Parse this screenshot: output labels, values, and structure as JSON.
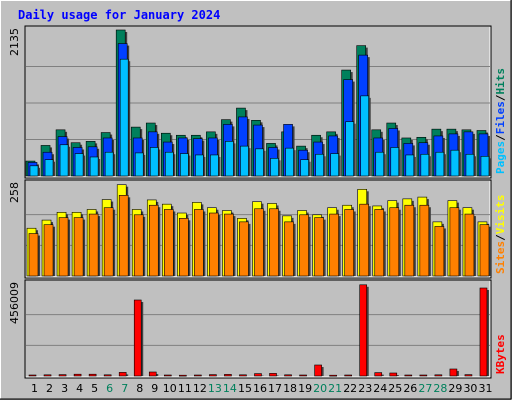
{
  "chart_data": {
    "type": "bar",
    "title": "Daily usage for January 2024",
    "background": "#c0c0c0",
    "frame_color": "#c0c0c0",
    "title_color": "#0000ff",
    "gridline_color": "#808080",
    "days": [
      "1",
      "2",
      "3",
      "4",
      "5",
      "6",
      "7",
      "8",
      "9",
      "10",
      "11",
      "12",
      "13",
      "14",
      "15",
      "16",
      "17",
      "18",
      "19",
      "20",
      "21",
      "22",
      "23",
      "24",
      "25",
      "26",
      "27",
      "28",
      "29",
      "30",
      "31"
    ],
    "weekend_days": [
      "6",
      "7",
      "13",
      "14",
      "20",
      "21",
      "27",
      "28"
    ],
    "day_label_colors": {
      "weekday": "#000000",
      "weekend": "#00805c"
    },
    "panels": [
      {
        "id": "hits-files-pages",
        "y_max_label": "2135",
        "ymax": 2150,
        "legend": [
          {
            "text": "Pages",
            "color": "#00c0ff"
          },
          {
            "text": "/",
            "color": "#000000"
          },
          {
            "text": "Files",
            "color": "#0040ff"
          },
          {
            "text": "/",
            "color": "#000000"
          },
          {
            "text": "Hits",
            "color": "#00805c"
          }
        ],
        "series": [
          {
            "name": "Hits",
            "color": "#00805c",
            "values": [
              220,
              450,
              680,
              490,
              510,
              640,
              2150,
              720,
              780,
              630,
              600,
              600,
              650,
              830,
              1000,
              820,
              480,
              650,
              440,
              600,
              650,
              1560,
              1920,
              680,
              780,
              560,
              570,
              690,
              690,
              680,
              670
            ]
          },
          {
            "name": "Files",
            "color": "#0040ff",
            "values": [
              200,
              350,
              580,
              420,
              430,
              560,
              1950,
              560,
              650,
              500,
              560,
              550,
              560,
              760,
              870,
              750,
              420,
              760,
              380,
              500,
              590,
              1420,
              1780,
              560,
              700,
              480,
              490,
              590,
              620,
              650,
              620
            ]
          },
          {
            "name": "Pages",
            "color": "#00c0ff",
            "values": [
              150,
              240,
              460,
              330,
              280,
              350,
              1720,
              340,
              420,
              350,
              330,
              310,
              310,
              510,
              440,
              400,
              260,
              410,
              240,
              320,
              330,
              800,
              1180,
              350,
              420,
              310,
              320,
              350,
              380,
              320,
              290
            ]
          }
        ]
      },
      {
        "id": "visits-sites",
        "y_max_label": "258",
        "ymax": 260,
        "legend": [
          {
            "text": "Sites",
            "color": "#ff8000"
          },
          {
            "text": "/",
            "color": "#000000"
          },
          {
            "text": "Visits",
            "color": "#ffff00"
          }
        ],
        "series": [
          {
            "name": "Visits",
            "color": "#ffff00",
            "values": [
              135,
              158,
              180,
              180,
              188,
              216,
              258,
              188,
              215,
              203,
              178,
              208,
              193,
              185,
              163,
              210,
              205,
              170,
              185,
              173,
              193,
              200,
              245,
              198,
              213,
              218,
              223,
              153,
              213,
              193,
              153
            ]
          },
          {
            "name": "Sites",
            "color": "#ff8000",
            "values": [
              120,
              145,
              165,
              165,
              175,
              193,
              228,
              173,
              200,
              188,
              163,
              188,
              178,
              175,
              153,
              190,
              190,
              153,
              173,
              165,
              175,
              188,
              203,
              188,
              193,
              200,
              200,
              140,
              193,
              175,
              145
            ]
          }
        ]
      },
      {
        "id": "kbytes",
        "y_max_label": "456009",
        "ymax": 460000,
        "legend": [
          {
            "text": "KBytes",
            "color": "#ff0000"
          }
        ],
        "series": [
          {
            "name": "KBytes",
            "color": "#ff0000",
            "values": [
              5000,
              6000,
              7000,
              9000,
              9000,
              6000,
              18000,
              380000,
              20000,
              5000,
              4000,
              5000,
              7000,
              8000,
              6000,
              12000,
              13000,
              6000,
              5000,
              55000,
              4000,
              5000,
              456009,
              17000,
              15000,
              5000,
              5000,
              6000,
              35000,
              7000,
              440000
            ]
          }
        ]
      }
    ]
  }
}
